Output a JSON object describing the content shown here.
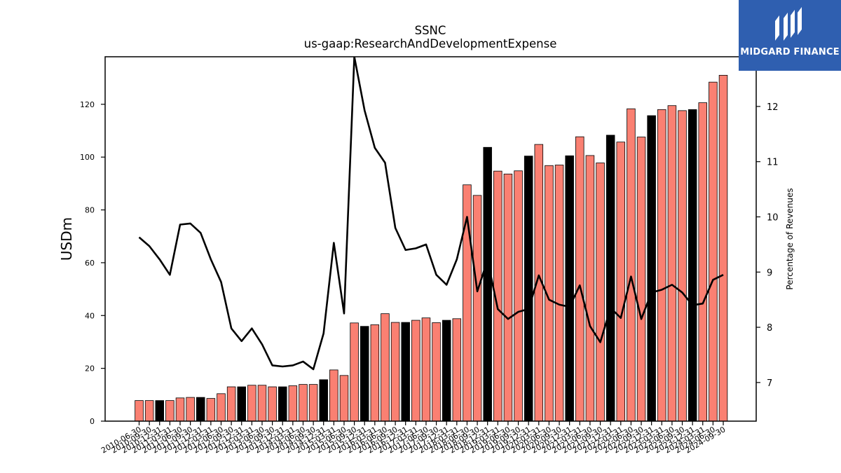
{
  "chart_data": {
    "type": "bar",
    "title": "SSNC",
    "subtitle": "us-gaap:ResearchAndDevelopmentExpense",
    "ylabel": "USDm",
    "y2label": "Percentage of Revenues",
    "ylim": [
      0,
      138
    ],
    "y2lim": [
      6.3,
      12.9
    ],
    "yticks": [
      0,
      20,
      40,
      60,
      80,
      100,
      120
    ],
    "y2ticks": [
      7,
      8,
      9,
      10,
      11,
      12
    ],
    "grid": false,
    "colors": {
      "bar": "#fa8072",
      "bar_q4": "#000000",
      "line": "#000000"
    },
    "x": [
      "2010-06-30",
      "2010-09-30",
      "2010-12-31",
      "2011-03-31",
      "2011-06-30",
      "2011-09-30",
      "2011-12-31",
      "2012-03-31",
      "2012-06-30",
      "2012-09-30",
      "2012-12-31",
      "2013-03-31",
      "2013-06-30",
      "2013-09-30",
      "2013-12-31",
      "2014-03-31",
      "2014-06-30",
      "2014-09-30",
      "2014-12-31",
      "2015-03-31",
      "2015-06-30",
      "2015-09-30",
      "2015-12-31",
      "2016-03-31",
      "2016-06-30",
      "2016-09-30",
      "2016-12-31",
      "2017-03-31",
      "2017-06-30",
      "2017-09-30",
      "2017-12-31",
      "2018-03-31",
      "2018-06-30",
      "2018-09-30",
      "2018-12-31",
      "2019-03-31",
      "2019-06-30",
      "2019-09-30",
      "2019-12-31",
      "2020-03-31",
      "2020-06-30",
      "2020-09-30",
      "2020-12-31",
      "2021-03-31",
      "2021-06-30",
      "2021-09-30",
      "2021-12-31",
      "2022-03-31",
      "2022-06-30",
      "2022-09-30",
      "2022-12-31",
      "2023-03-31",
      "2023-06-30",
      "2023-09-30",
      "2023-12-31",
      "2024-03-31",
      "2024-06-30",
      "2024-09-30"
    ],
    "series": [
      {
        "type": "bar",
        "axis": "left",
        "values": [
          7.8,
          7.8,
          7.8,
          7.8,
          8.8,
          9.0,
          9.0,
          8.6,
          10.4,
          13.0,
          13.0,
          13.6,
          13.6,
          13.0,
          13.0,
          13.4,
          13.9,
          13.9,
          15.7,
          19.4,
          17.3,
          37.2,
          35.9,
          36.5,
          40.7,
          37.4,
          37.4,
          38.2,
          39.1,
          37.3,
          38.2,
          38.8,
          89.5,
          85.5,
          103.7,
          94.7,
          93.6,
          94.8,
          100.4,
          104.8,
          96.8,
          97.0,
          100.5,
          107.7,
          100.6,
          97.8,
          108.3,
          105.7,
          118.3,
          107.6,
          115.7,
          118.0,
          119.5,
          117.6,
          118.0,
          120.6,
          128.4,
          131.0
        ]
      },
      {
        "type": "line",
        "axis": "right",
        "values": [
          9.63,
          9.47,
          9.23,
          8.95,
          9.86,
          9.88,
          9.71,
          9.23,
          8.82,
          7.98,
          7.75,
          7.98,
          7.69,
          7.31,
          7.29,
          7.31,
          7.38,
          7.24,
          7.89,
          9.53,
          8.25,
          12.9,
          11.93,
          11.25,
          10.98,
          9.8,
          9.4,
          9.43,
          9.5,
          8.95,
          8.77,
          9.23,
          10.0,
          8.65,
          9.22,
          8.33,
          8.15,
          8.28,
          8.33,
          8.94,
          8.5,
          8.41,
          8.37,
          8.76,
          8.02,
          7.73,
          8.35,
          8.17,
          8.92,
          8.15,
          8.63,
          8.68,
          8.77,
          8.63,
          8.4,
          8.43,
          8.86,
          8.95
        ]
      }
    ]
  },
  "logo": {
    "text": "MIDGARD FINANCE",
    "icon": "midgard-logo-icon",
    "color": "#2f5fb0"
  }
}
